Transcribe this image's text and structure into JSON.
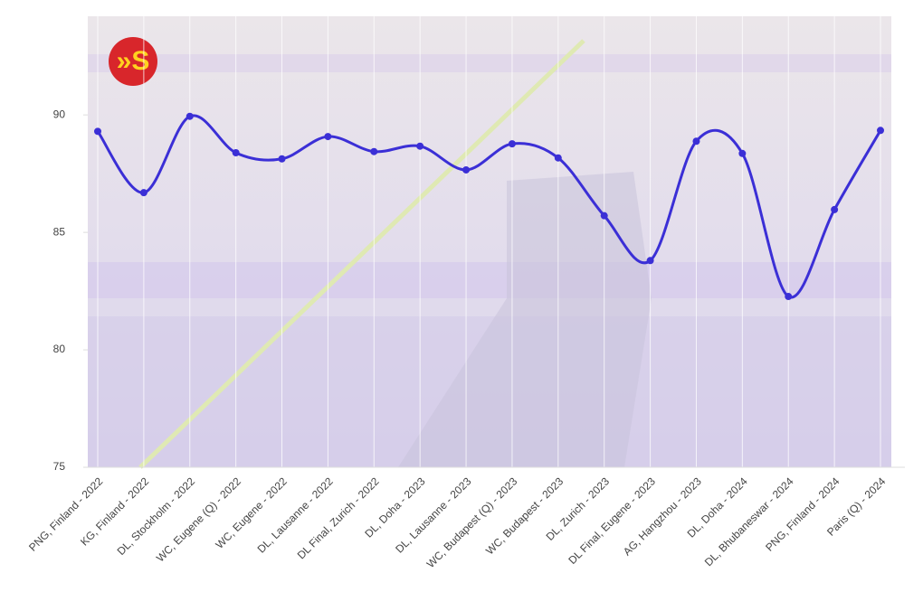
{
  "logo_text": "»S",
  "chart_data": {
    "type": "line",
    "categories": [
      "PNG, Finland - 2022",
      "KG, Finland - 2022",
      "DL, Stockholm - 2022",
      "WC, Eugene (Q) - 2022",
      "WC, Eugene - 2022",
      "DL, Lausanne - 2022",
      "DL Final, Zurich - 2022",
      "DL, Doha - 2023",
      "DL, Lausanne - 2023",
      "WC, Budapest (Q) - 2023",
      "WC, Budapest - 2023",
      "DL, Zurich - 2023",
      "DL Final, Eugene - 2023",
      "AG, Hangzhou - 2023",
      "DL, Doha - 2024",
      "DL, Bhubaneswar - 2024",
      "PNG, Finland - 2024",
      "Paris (Q) - 2024"
    ],
    "values": [
      89.3,
      86.69,
      89.94,
      88.39,
      88.13,
      89.08,
      88.44,
      88.67,
      87.66,
      88.77,
      88.17,
      85.71,
      83.8,
      88.88,
      88.36,
      82.27,
      85.97,
      89.34
    ],
    "color": "#3b2fd6",
    "ylim": [
      75,
      94.2
    ],
    "yticks": [
      75,
      80,
      85,
      90
    ],
    "grid": true
  }
}
